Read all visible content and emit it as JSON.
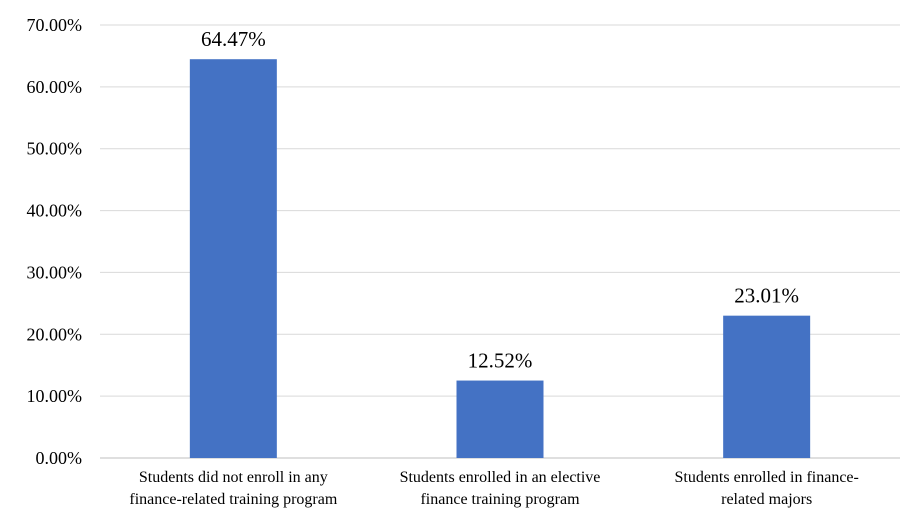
{
  "chart_data": {
    "type": "bar",
    "title": "",
    "xlabel": "",
    "ylabel": "",
    "ylim": [
      0,
      70
    ],
    "yticks": [
      "0.00%",
      "10.00%",
      "20.00%",
      "30.00%",
      "40.00%",
      "50.00%",
      "60.00%",
      "70.00%"
    ],
    "grid": true,
    "legend": "none",
    "bar_color": "#4472c4",
    "categories": [
      [
        "Students did not enroll in any",
        "finance-related training program"
      ],
      [
        "Students enrolled in an elective",
        "finance training program"
      ],
      [
        "Students enrolled in finance-",
        "related majors"
      ]
    ],
    "values": [
      64.47,
      12.52,
      23.01
    ],
    "data_labels": [
      "64.47%",
      "12.52%",
      "23.01%"
    ]
  }
}
